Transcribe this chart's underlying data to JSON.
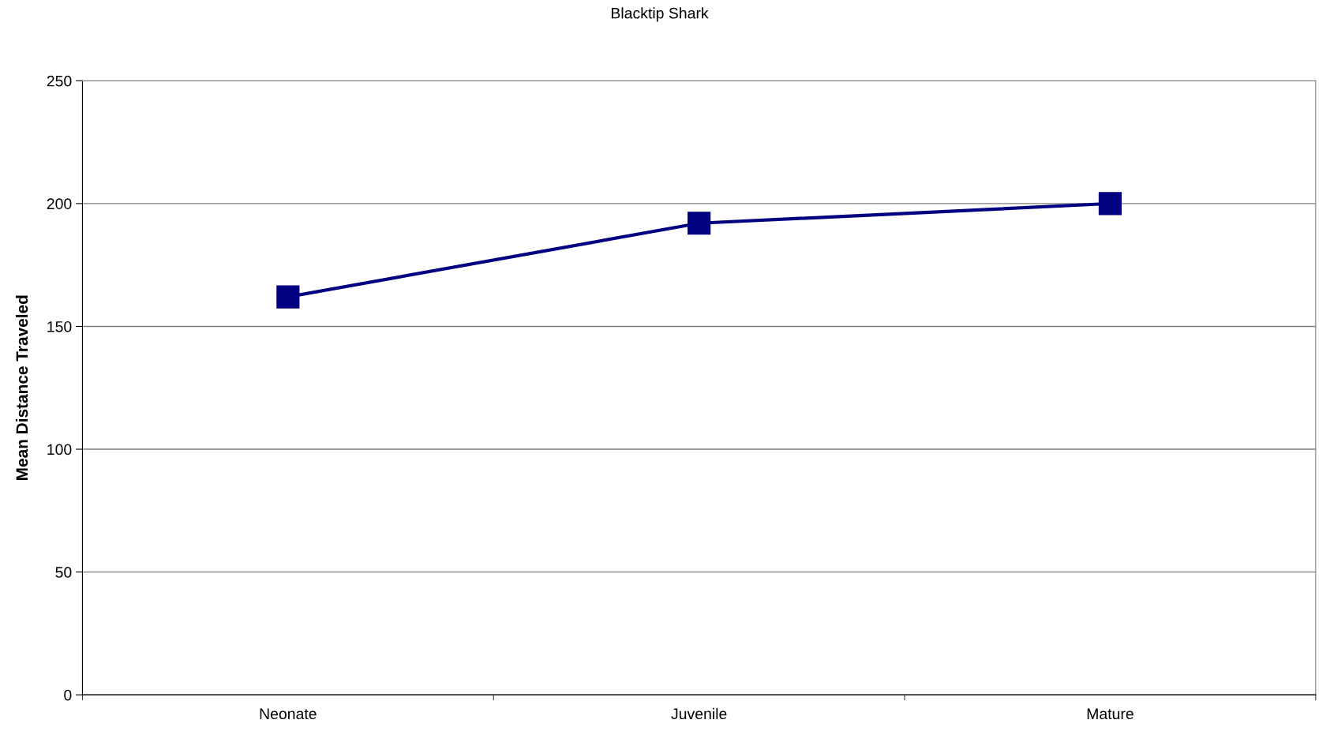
{
  "chart_data": {
    "type": "line",
    "title": "Blacktip Shark",
    "ylabel": "Mean Distance Traveled",
    "categories": [
      "Neonate",
      "Juvenile",
      "Mature"
    ],
    "series": [
      {
        "color": "#000080",
        "values": [
          162,
          192,
          200
        ]
      }
    ],
    "ylim": [
      0,
      250
    ],
    "yticks": [
      0,
      50,
      100,
      150,
      200,
      250
    ],
    "grid": "y",
    "marker": "square",
    "line_style": "solid"
  }
}
